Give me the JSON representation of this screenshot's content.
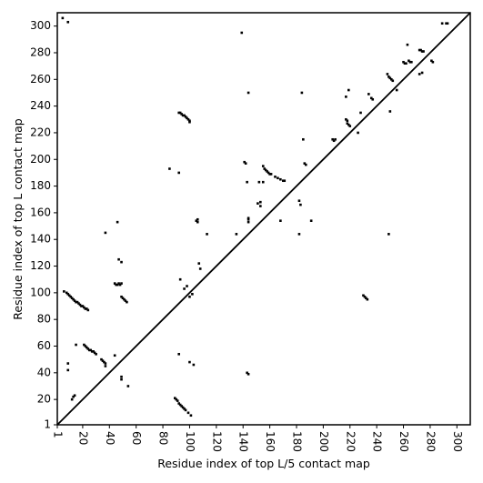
{
  "chart_data": {
    "type": "scatter",
    "x_label": "Residue index of top L/5 contact map",
    "y_label": "Residue index of top L contact map",
    "xlim": [
      1,
      310
    ],
    "ylim": [
      1,
      310
    ],
    "xticks": [
      1,
      20,
      40,
      60,
      80,
      100,
      120,
      140,
      160,
      180,
      200,
      220,
      240,
      260,
      280,
      300
    ],
    "yticks": [
      1,
      20,
      40,
      60,
      80,
      100,
      120,
      140,
      160,
      180,
      200,
      220,
      240,
      260,
      280,
      300
    ],
    "diagonal": true,
    "color": "#000000",
    "x": [
      6,
      8,
      9,
      10,
      11,
      12,
      13,
      14,
      15,
      16,
      17,
      18,
      19,
      20,
      21,
      22,
      23,
      24,
      21,
      22,
      23,
      24,
      25,
      26,
      27,
      28,
      29,
      30,
      34,
      35,
      36,
      37,
      37,
      44,
      45,
      46,
      47,
      48,
      49,
      49,
      50,
      51,
      52,
      53,
      5,
      9,
      13,
      14,
      12,
      9,
      9,
      15,
      37,
      46,
      47,
      49,
      54,
      49,
      49,
      44,
      92,
      93,
      94,
      95,
      96,
      97,
      98,
      99,
      100,
      100,
      85,
      92,
      93,
      96,
      98,
      100,
      102,
      107,
      108,
      105,
      106,
      106,
      113,
      135,
      141,
      142,
      143,
      144,
      144,
      144,
      144,
      139,
      151,
      153,
      152,
      155,
      153,
      155,
      156,
      157,
      158,
      159,
      160,
      161,
      164,
      166,
      168,
      170,
      171,
      168,
      182,
      183,
      184,
      185,
      186,
      187,
      182,
      191,
      207,
      208,
      209,
      217,
      218,
      218,
      219,
      220,
      219,
      217,
      226,
      228,
      234,
      236,
      237,
      248,
      249,
      250,
      251,
      252,
      250,
      249,
      255,
      260,
      261,
      262,
      264,
      265,
      266,
      263,
      272,
      273,
      274,
      275,
      272,
      274,
      281,
      282,
      289,
      292,
      293,
      89,
      90,
      91,
      92,
      93,
      94,
      95,
      96,
      97,
      99,
      101,
      92,
      100,
      103,
      143,
      144,
      230,
      231,
      232,
      233
    ],
    "values": [
      101,
      100,
      99,
      98,
      97,
      96,
      95,
      94,
      93,
      93,
      92,
      91,
      90,
      90,
      89,
      88,
      88,
      87,
      61,
      60,
      59,
      58,
      57,
      57,
      56,
      56,
      55,
      54,
      50,
      49,
      48,
      47,
      45,
      107,
      106,
      106,
      107,
      106,
      107,
      97,
      96,
      95,
      94,
      93,
      306,
      303,
      22,
      23,
      20,
      47,
      42,
      61,
      145,
      153,
      125,
      123,
      30,
      37,
      35,
      53,
      235,
      235,
      234,
      233,
      233,
      232,
      231,
      230,
      229,
      228,
      193,
      190,
      110,
      103,
      105,
      97,
      99,
      122,
      118,
      154,
      153,
      155,
      144,
      144,
      198,
      197,
      183,
      156,
      155,
      153,
      250,
      295,
      167,
      168,
      183,
      183,
      165,
      195,
      193,
      192,
      191,
      190,
      189,
      189,
      187,
      186,
      185,
      184,
      184,
      154,
      169,
      166,
      250,
      215,
      197,
      196,
      144,
      154,
      215,
      214,
      215,
      230,
      229,
      227,
      226,
      225,
      252,
      247,
      220,
      235,
      249,
      246,
      245,
      264,
      262,
      261,
      260,
      259,
      236,
      144,
      252,
      273,
      272,
      272,
      274,
      273,
      273,
      286,
      282,
      282,
      281,
      281,
      264,
      265,
      274,
      273,
      302,
      302,
      302,
      21,
      20,
      19,
      17,
      16,
      15,
      14,
      13,
      12,
      10,
      8,
      54,
      48,
      46,
      40,
      39,
      98,
      97,
      96,
      95
    ]
  }
}
